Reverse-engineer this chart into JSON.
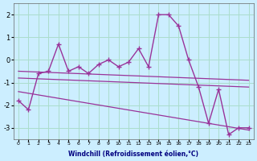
{
  "xlabel": "Windchill (Refroidissement éolien,°C)",
  "bg_color": "#cceeff",
  "grid_color": "#aaddcc",
  "line_color": "#993399",
  "hours": [
    0,
    1,
    2,
    3,
    4,
    5,
    6,
    7,
    8,
    9,
    10,
    11,
    12,
    13,
    14,
    15,
    16,
    17,
    18,
    19,
    20,
    21,
    22,
    23
  ],
  "windchill": [
    -1.8,
    -2.2,
    -0.6,
    -0.5,
    0.7,
    -0.5,
    -0.3,
    -0.6,
    -0.2,
    0.0,
    -0.3,
    -0.1,
    0.5,
    -0.3,
    2.0,
    2.0,
    1.5,
    0.0,
    -1.2,
    -2.8,
    -1.3,
    -3.3,
    -3.0,
    -3.0
  ],
  "ylim": [
    -3.5,
    2.5
  ],
  "yticks": [
    -3,
    -2,
    -1,
    0,
    1,
    2
  ],
  "trend_lines": [
    [
      [
        0,
        23
      ],
      [
        -0.5,
        -0.9
      ]
    ],
    [
      [
        0,
        23
      ],
      [
        -0.8,
        -1.2
      ]
    ],
    [
      [
        0,
        23
      ],
      [
        -1.4,
        -3.1
      ]
    ]
  ]
}
